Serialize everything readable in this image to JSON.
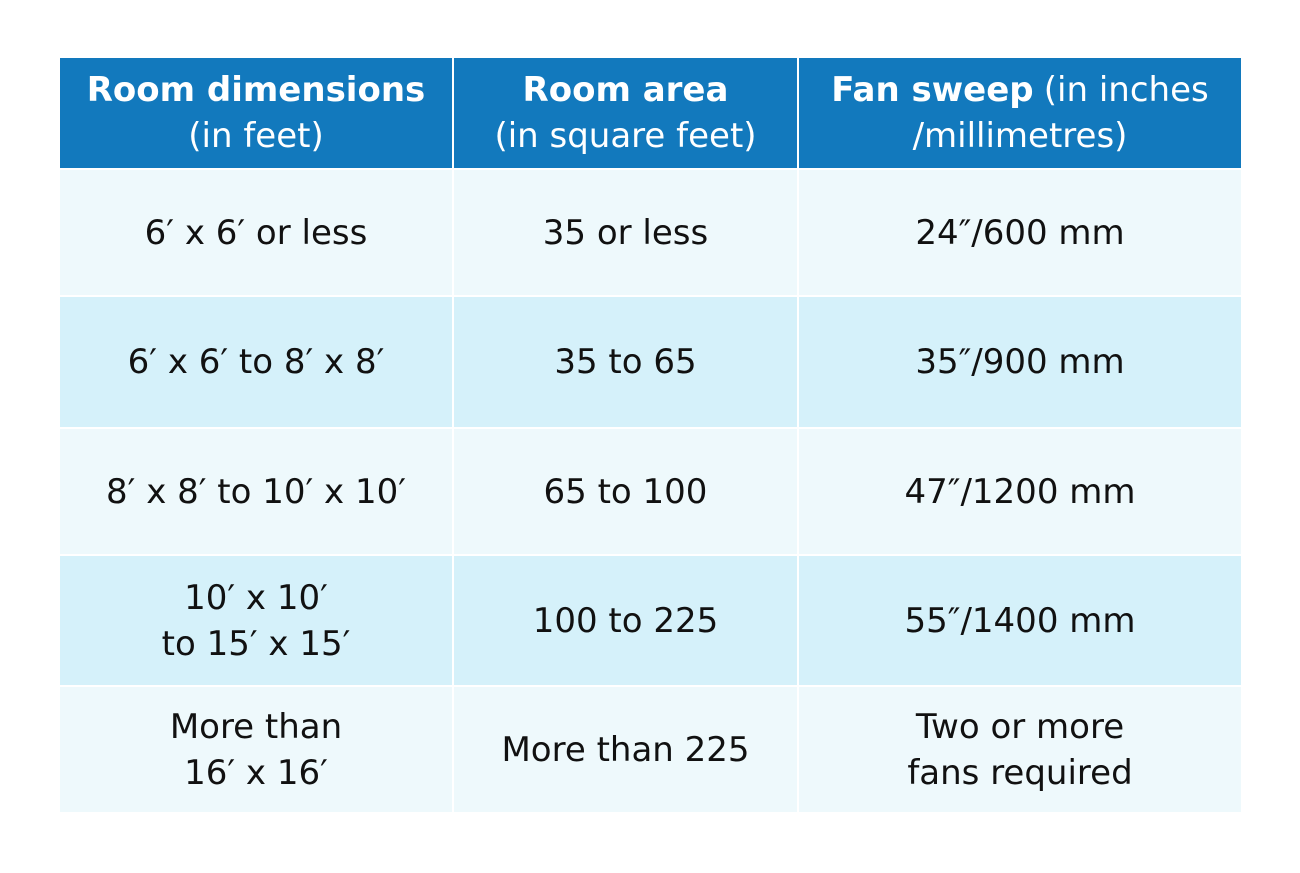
{
  "table": {
    "header": [
      {
        "lines": [
          [
            {
              "text": "Room dimensions",
              "bold": true
            }
          ],
          [
            {
              "text": "(in feet)",
              "bold": false
            }
          ]
        ]
      },
      {
        "lines": [
          [
            {
              "text": "Room area",
              "bold": true
            }
          ],
          [
            {
              "text": "(in square feet)",
              "bold": false
            }
          ]
        ]
      },
      {
        "lines": [
          [
            {
              "text": "Fan sweep",
              "bold": true
            },
            {
              "text": "(in inches",
              "bold": false
            }
          ],
          [
            {
              "text": "/millimetres)",
              "bold": false
            }
          ]
        ]
      }
    ],
    "rows": [
      [
        [
          "6′ x 6′ or less"
        ],
        [
          "35 or less"
        ],
        [
          "24″/600 mm"
        ]
      ],
      [
        [
          "6′ x 6′ to 8′ x 8′"
        ],
        [
          "35 to 65"
        ],
        [
          "35″/900 mm"
        ]
      ],
      [
        [
          "8′ x 8′ to 10′ x 10′"
        ],
        [
          "65 to 100"
        ],
        [
          "47″/1200 mm"
        ]
      ],
      [
        [
          "10′ x 10′",
          "to 15′ x 15′"
        ],
        [
          "100 to 225"
        ],
        [
          "55″/1400 mm"
        ]
      ],
      [
        [
          "More than",
          "16′ x 16′"
        ],
        [
          "More than 225"
        ],
        [
          "Two or more",
          "fans required"
        ]
      ]
    ]
  }
}
